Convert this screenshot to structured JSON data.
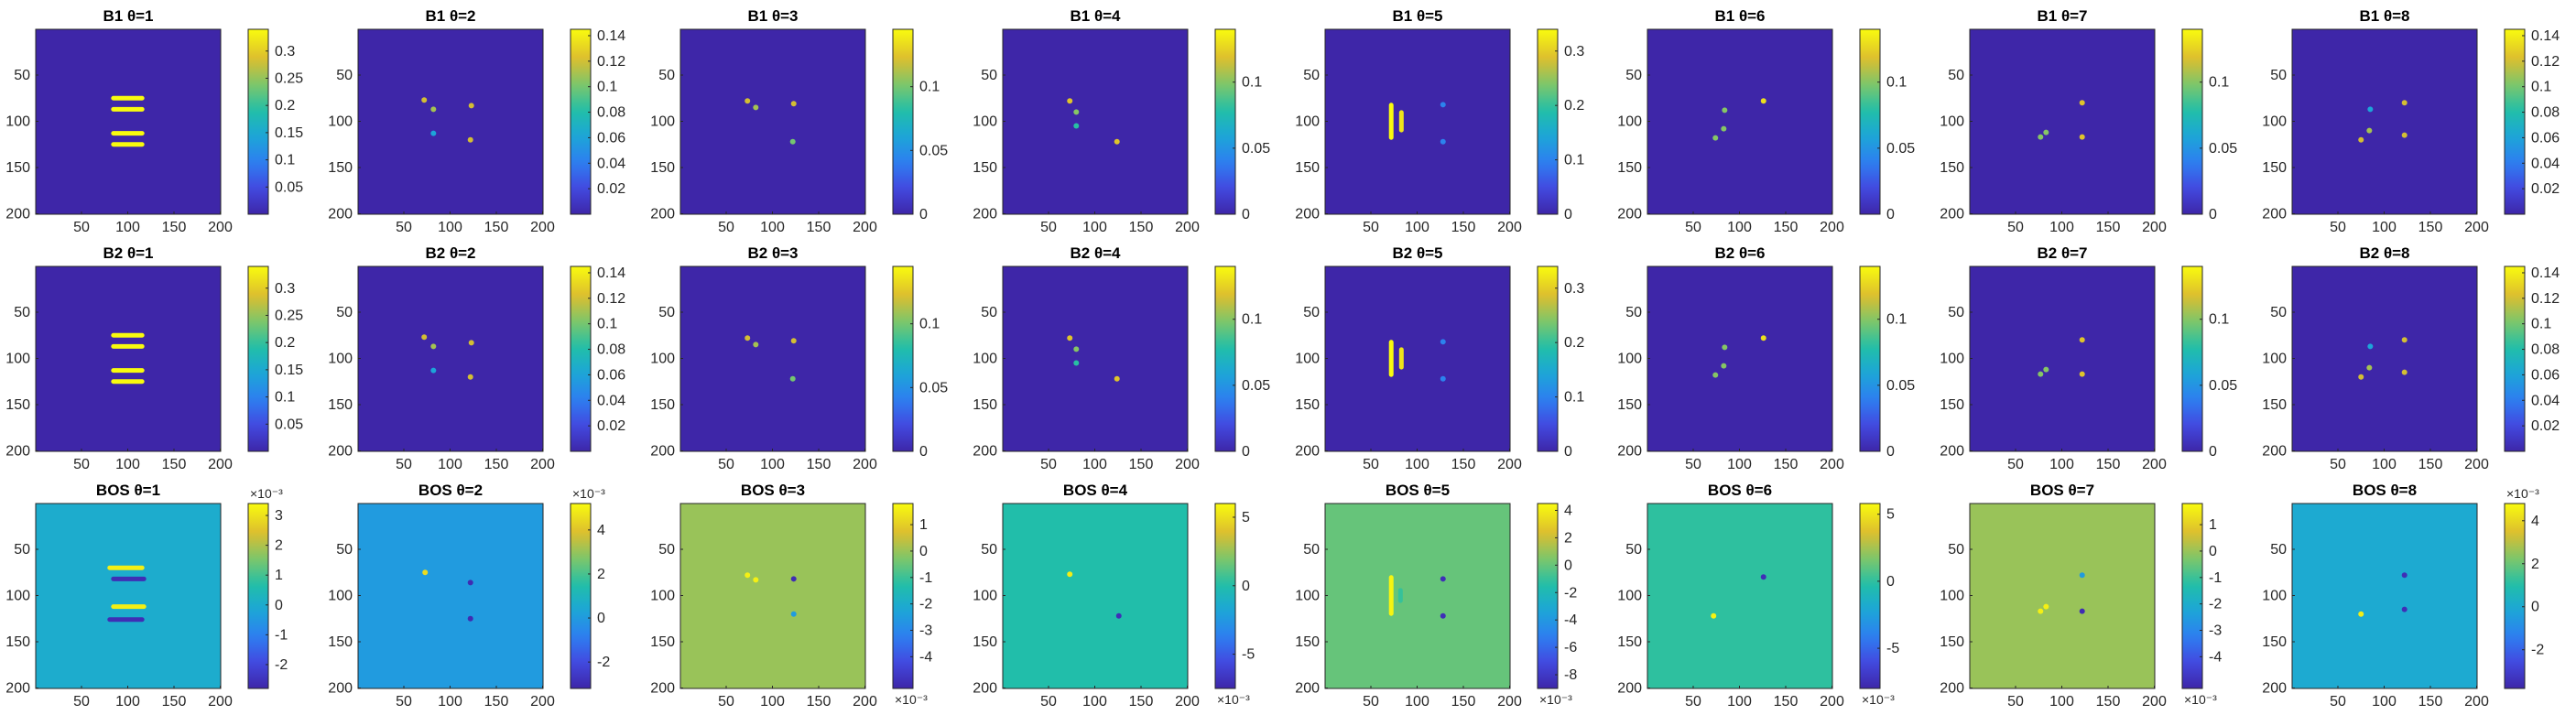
{
  "figure": {
    "xticks": [
      50,
      100,
      150,
      200
    ],
    "yticks": [
      50,
      100,
      150,
      200
    ],
    "xlim": [
      0.5,
      200.5
    ],
    "ylim": [
      0.5,
      200.5
    ],
    "y_axis_reversed": true,
    "colormap": "parula",
    "colors": {
      "background": "#3e26a8",
      "bos_label_fill": "#000000"
    }
  },
  "chart_data": [
    {
      "type": "heatmap",
      "title": "B1 θ=1",
      "clim": [
        0,
        0.34
      ],
      "cticks": [
        0.05,
        0.1,
        0.15,
        0.2,
        0.25,
        0.3
      ],
      "clabels": [
        "0.05",
        "0.1",
        "0.15",
        "0.2",
        "0.25",
        "0.3"
      ],
      "cexp": "",
      "bg": 0.0,
      "features": [
        {
          "k": "hbar",
          "x": [
            82,
            118
          ],
          "y": 75,
          "v": 0.34
        },
        {
          "k": "hbar",
          "x": [
            82,
            118
          ],
          "y": 87,
          "v": 0.34
        },
        {
          "k": "hbar",
          "x": [
            82,
            118
          ],
          "y": 113,
          "v": 0.34
        },
        {
          "k": "hbar",
          "x": [
            82,
            118
          ],
          "y": 125,
          "v": 0.34
        }
      ]
    },
    {
      "type": "heatmap",
      "title": "B1 θ=2",
      "clim": [
        0,
        0.145
      ],
      "cticks": [
        0.02,
        0.04,
        0.06,
        0.08,
        0.1,
        0.12,
        0.14
      ],
      "clabels": [
        "0.02",
        "0.04",
        "0.06",
        "0.08",
        "0.1",
        "0.12",
        "0.14"
      ],
      "cexp": "",
      "bg": 0.0,
      "features": [
        {
          "k": "dot",
          "x": 72,
          "y": 77,
          "v": 0.12
        },
        {
          "k": "dot",
          "x": 82,
          "y": 87,
          "v": 0.11
        },
        {
          "k": "dot",
          "x": 123,
          "y": 83,
          "v": 0.12
        },
        {
          "k": "dot",
          "x": 82,
          "y": 113,
          "v": 0.06
        },
        {
          "k": "dot",
          "x": 122,
          "y": 120,
          "v": 0.12
        }
      ]
    },
    {
      "type": "heatmap",
      "title": "B1 θ=3",
      "clim": [
        0,
        0.145
      ],
      "cticks": [
        0,
        0.05,
        0.1
      ],
      "clabels": [
        "0",
        "0.05",
        "0.1"
      ],
      "cexp": "",
      "bg": 0.0,
      "features": [
        {
          "k": "dot",
          "x": 73,
          "y": 78,
          "v": 0.12
        },
        {
          "k": "dot",
          "x": 82,
          "y": 85,
          "v": 0.11
        },
        {
          "k": "dot",
          "x": 123,
          "y": 81,
          "v": 0.12
        },
        {
          "k": "dot",
          "x": 122,
          "y": 122,
          "v": 0.1
        }
      ]
    },
    {
      "type": "heatmap",
      "title": "B1 θ=4",
      "clim": [
        0,
        0.14
      ],
      "cticks": [
        0,
        0.05,
        0.1
      ],
      "clabels": [
        "0",
        "0.05",
        "0.1"
      ],
      "cexp": "",
      "bg": 0.0,
      "features": [
        {
          "k": "dot",
          "x": 73,
          "y": 78,
          "v": 0.12
        },
        {
          "k": "dot",
          "x": 80,
          "y": 90,
          "v": 0.1
        },
        {
          "k": "dot",
          "x": 80,
          "y": 105,
          "v": 0.08
        },
        {
          "k": "dot",
          "x": 124,
          "y": 122,
          "v": 0.12
        }
      ]
    },
    {
      "type": "heatmap",
      "title": "B1 θ=5",
      "clim": [
        0,
        0.34
      ],
      "cticks": [
        0,
        0.1,
        0.2,
        0.3
      ],
      "clabels": [
        "0",
        "0.1",
        "0.2",
        "0.3"
      ],
      "cexp": "",
      "bg": 0.0,
      "features": [
        {
          "k": "vbar",
          "x": 72,
          "y": [
            80,
            120
          ],
          "v": 0.34
        },
        {
          "k": "vbar",
          "x": 83,
          "y": [
            88,
            112
          ],
          "v": 0.32
        },
        {
          "k": "dot",
          "x": 128,
          "y": 82,
          "v": 0.1
        },
        {
          "k": "dot",
          "x": 128,
          "y": 122,
          "v": 0.1
        }
      ]
    },
    {
      "type": "heatmap",
      "title": "B1 θ=6",
      "clim": [
        0,
        0.14
      ],
      "cticks": [
        0,
        0.05,
        0.1
      ],
      "clabels": [
        "0",
        "0.05",
        "0.1"
      ],
      "cexp": "",
      "bg": 0.0,
      "features": [
        {
          "k": "dot",
          "x": 84,
          "y": 88,
          "v": 0.1
        },
        {
          "k": "dot",
          "x": 83,
          "y": 108,
          "v": 0.1
        },
        {
          "k": "dot",
          "x": 74,
          "y": 118,
          "v": 0.1
        },
        {
          "k": "dot",
          "x": 126,
          "y": 78,
          "v": 0.13
        }
      ]
    },
    {
      "type": "heatmap",
      "title": "B1 θ=7",
      "clim": [
        0,
        0.14
      ],
      "cticks": [
        0,
        0.05,
        0.1
      ],
      "clabels": [
        "0",
        "0.05",
        "0.1"
      ],
      "cexp": "",
      "bg": 0.0,
      "features": [
        {
          "k": "dot",
          "x": 122,
          "y": 80,
          "v": 0.12
        },
        {
          "k": "dot",
          "x": 83,
          "y": 112,
          "v": 0.1
        },
        {
          "k": "dot",
          "x": 77,
          "y": 117,
          "v": 0.1
        },
        {
          "k": "dot",
          "x": 122,
          "y": 117,
          "v": 0.12
        }
      ]
    },
    {
      "type": "heatmap",
      "title": "B1 θ=8",
      "clim": [
        0,
        0.145
      ],
      "cticks": [
        0.02,
        0.04,
        0.06,
        0.08,
        0.1,
        0.12,
        0.14
      ],
      "clabels": [
        "0.02",
        "0.04",
        "0.06",
        "0.08",
        "0.1",
        "0.12",
        "0.14"
      ],
      "cexp": "",
      "bg": 0.0,
      "features": [
        {
          "k": "dot",
          "x": 122,
          "y": 80,
          "v": 0.12
        },
        {
          "k": "dot",
          "x": 85,
          "y": 87,
          "v": 0.06
        },
        {
          "k": "dot",
          "x": 84,
          "y": 110,
          "v": 0.11
        },
        {
          "k": "dot",
          "x": 122,
          "y": 115,
          "v": 0.12
        },
        {
          "k": "dot",
          "x": 75,
          "y": 120,
          "v": 0.12
        }
      ]
    },
    {
      "type": "heatmap",
      "title": "B2 θ=1",
      "clim": [
        0,
        0.34
      ],
      "cticks": [
        0.05,
        0.1,
        0.15,
        0.2,
        0.25,
        0.3
      ],
      "clabels": [
        "0.05",
        "0.1",
        "0.15",
        "0.2",
        "0.25",
        "0.3"
      ],
      "cexp": "",
      "bg": 0.0,
      "features": [
        {
          "k": "hbar",
          "x": [
            82,
            118
          ],
          "y": 75,
          "v": 0.34
        },
        {
          "k": "hbar",
          "x": [
            82,
            118
          ],
          "y": 87,
          "v": 0.34
        },
        {
          "k": "hbar",
          "x": [
            82,
            118
          ],
          "y": 113,
          "v": 0.34
        },
        {
          "k": "hbar",
          "x": [
            82,
            118
          ],
          "y": 125,
          "v": 0.34
        }
      ]
    },
    {
      "type": "heatmap",
      "title": "B2 θ=2",
      "clim": [
        0,
        0.145
      ],
      "cticks": [
        0.02,
        0.04,
        0.06,
        0.08,
        0.1,
        0.12,
        0.14
      ],
      "clabels": [
        "0.02",
        "0.04",
        "0.06",
        "0.08",
        "0.1",
        "0.12",
        "0.14"
      ],
      "cexp": "",
      "bg": 0.0,
      "features": [
        {
          "k": "dot",
          "x": 72,
          "y": 77,
          "v": 0.12
        },
        {
          "k": "dot",
          "x": 82,
          "y": 87,
          "v": 0.11
        },
        {
          "k": "dot",
          "x": 123,
          "y": 83,
          "v": 0.12
        },
        {
          "k": "dot",
          "x": 82,
          "y": 113,
          "v": 0.06
        },
        {
          "k": "dot",
          "x": 122,
          "y": 120,
          "v": 0.12
        }
      ]
    },
    {
      "type": "heatmap",
      "title": "B2 θ=3",
      "clim": [
        0,
        0.145
      ],
      "cticks": [
        0,
        0.05,
        0.1
      ],
      "clabels": [
        "0",
        "0.05",
        "0.1"
      ],
      "cexp": "",
      "bg": 0.0,
      "features": [
        {
          "k": "dot",
          "x": 73,
          "y": 78,
          "v": 0.12
        },
        {
          "k": "dot",
          "x": 82,
          "y": 85,
          "v": 0.11
        },
        {
          "k": "dot",
          "x": 123,
          "y": 81,
          "v": 0.12
        },
        {
          "k": "dot",
          "x": 122,
          "y": 122,
          "v": 0.1
        }
      ]
    },
    {
      "type": "heatmap",
      "title": "B2 θ=4",
      "clim": [
        0,
        0.14
      ],
      "cticks": [
        0,
        0.05,
        0.1
      ],
      "clabels": [
        "0",
        "0.05",
        "0.1"
      ],
      "cexp": "",
      "bg": 0.0,
      "features": [
        {
          "k": "dot",
          "x": 73,
          "y": 78,
          "v": 0.12
        },
        {
          "k": "dot",
          "x": 80,
          "y": 90,
          "v": 0.1
        },
        {
          "k": "dot",
          "x": 80,
          "y": 105,
          "v": 0.08
        },
        {
          "k": "dot",
          "x": 124,
          "y": 122,
          "v": 0.12
        }
      ]
    },
    {
      "type": "heatmap",
      "title": "B2 θ=5",
      "clim": [
        0,
        0.34
      ],
      "cticks": [
        0,
        0.1,
        0.2,
        0.3
      ],
      "clabels": [
        "0",
        "0.1",
        "0.2",
        "0.3"
      ],
      "cexp": "",
      "bg": 0.0,
      "features": [
        {
          "k": "vbar",
          "x": 72,
          "y": [
            80,
            120
          ],
          "v": 0.34
        },
        {
          "k": "vbar",
          "x": 83,
          "y": [
            88,
            112
          ],
          "v": 0.32
        },
        {
          "k": "dot",
          "x": 128,
          "y": 82,
          "v": 0.1
        },
        {
          "k": "dot",
          "x": 128,
          "y": 122,
          "v": 0.1
        }
      ]
    },
    {
      "type": "heatmap",
      "title": "B2 θ=6",
      "clim": [
        0,
        0.14
      ],
      "cticks": [
        0,
        0.05,
        0.1
      ],
      "clabels": [
        "0",
        "0.05",
        "0.1"
      ],
      "cexp": "",
      "bg": 0.0,
      "features": [
        {
          "k": "dot",
          "x": 84,
          "y": 88,
          "v": 0.1
        },
        {
          "k": "dot",
          "x": 83,
          "y": 108,
          "v": 0.1
        },
        {
          "k": "dot",
          "x": 74,
          "y": 118,
          "v": 0.1
        },
        {
          "k": "dot",
          "x": 126,
          "y": 78,
          "v": 0.13
        }
      ]
    },
    {
      "type": "heatmap",
      "title": "B2 θ=7",
      "clim": [
        0,
        0.14
      ],
      "cticks": [
        0,
        0.05,
        0.1
      ],
      "clabels": [
        "0",
        "0.05",
        "0.1"
      ],
      "cexp": "",
      "bg": 0.0,
      "features": [
        {
          "k": "dot",
          "x": 122,
          "y": 80,
          "v": 0.12
        },
        {
          "k": "dot",
          "x": 83,
          "y": 112,
          "v": 0.1
        },
        {
          "k": "dot",
          "x": 77,
          "y": 117,
          "v": 0.1
        },
        {
          "k": "dot",
          "x": 122,
          "y": 117,
          "v": 0.12
        }
      ]
    },
    {
      "type": "heatmap",
      "title": "B2 θ=8",
      "clim": [
        0,
        0.145
      ],
      "cticks": [
        0.02,
        0.04,
        0.06,
        0.08,
        0.1,
        0.12,
        0.14
      ],
      "clabels": [
        "0.02",
        "0.04",
        "0.06",
        "0.08",
        "0.1",
        "0.12",
        "0.14"
      ],
      "cexp": "",
      "bg": 0.0,
      "features": [
        {
          "k": "dot",
          "x": 122,
          "y": 80,
          "v": 0.12
        },
        {
          "k": "dot",
          "x": 85,
          "y": 87,
          "v": 0.06
        },
        {
          "k": "dot",
          "x": 84,
          "y": 110,
          "v": 0.11
        },
        {
          "k": "dot",
          "x": 122,
          "y": 115,
          "v": 0.12
        },
        {
          "k": "dot",
          "x": 75,
          "y": 120,
          "v": 0.12
        }
      ]
    },
    {
      "type": "heatmap",
      "title": "BOS θ=1",
      "clim": [
        -2.8,
        3.4
      ],
      "cticks": [
        -2,
        -1,
        0,
        1,
        2,
        3
      ],
      "clabels": [
        "-2",
        "-1",
        "0",
        "1",
        "2",
        "3"
      ],
      "cexp": "×10⁻³",
      "cexp_pos": "top",
      "bg": 0.0,
      "features": [
        {
          "k": "hbar",
          "x": [
            78,
            118
          ],
          "y": 70,
          "v": 3.2
        },
        {
          "k": "hbar",
          "x": [
            82,
            120
          ],
          "y": 82,
          "v": -2.6
        },
        {
          "k": "hbar",
          "x": [
            82,
            120
          ],
          "y": 112,
          "v": 3.2
        },
        {
          "k": "hbar",
          "x": [
            78,
            118
          ],
          "y": 126,
          "v": -2.6
        }
      ]
    },
    {
      "type": "heatmap",
      "title": "BOS θ=2",
      "clim": [
        -3.2,
        5.2
      ],
      "cticks": [
        -2,
        0,
        2,
        4
      ],
      "clabels": [
        "-2",
        "0",
        "2",
        "4"
      ],
      "cexp": "×10⁻³",
      "cexp_pos": "top",
      "bg": 0.0,
      "features": [
        {
          "k": "dot",
          "x": 73,
          "y": 75,
          "v": 4.5
        },
        {
          "k": "dot",
          "x": 122,
          "y": 86,
          "v": -3.0
        },
        {
          "k": "dot",
          "x": 122,
          "y": 125,
          "v": -3.0
        }
      ]
    },
    {
      "type": "heatmap",
      "title": "BOS θ=3",
      "clim": [
        -5.2,
        1.8
      ],
      "cticks": [
        -4,
        -3,
        -2,
        -1,
        0,
        1
      ],
      "clabels": [
        "-4",
        "-3",
        "-2",
        "-1",
        "0",
        "1"
      ],
      "cexp": "×10⁻³",
      "cexp_pos": "bottom",
      "bg": 0.0,
      "features": [
        {
          "k": "dot",
          "x": 73,
          "y": 78,
          "v": 1.6
        },
        {
          "k": "dot",
          "x": 82,
          "y": 83,
          "v": 1.6
        },
        {
          "k": "dot",
          "x": 123,
          "y": 82,
          "v": -5.0
        },
        {
          "k": "dot",
          "x": 123,
          "y": 120,
          "v": -2.5
        }
      ]
    },
    {
      "type": "heatmap",
      "title": "BOS θ=4",
      "clim": [
        -7.5,
        6.0
      ],
      "cticks": [
        -5,
        0,
        5
      ],
      "clabels": [
        "-5",
        "0",
        "5"
      ],
      "cexp": "×10⁻³",
      "cexp_pos": "bottom",
      "bg": 0.0,
      "features": [
        {
          "k": "dot",
          "x": 73,
          "y": 77,
          "v": 5.5
        },
        {
          "k": "dot",
          "x": 126,
          "y": 122,
          "v": -7.0
        }
      ]
    },
    {
      "type": "heatmap",
      "title": "BOS θ=5",
      "clim": [
        -9.0,
        4.5
      ],
      "cticks": [
        -8,
        -6,
        -4,
        -2,
        0,
        2,
        4
      ],
      "clabels": [
        "-8",
        "-6",
        "-4",
        "-2",
        "0",
        "2",
        "4"
      ],
      "cexp": "×10⁻³",
      "cexp_pos": "bottom",
      "bg": 0.0,
      "features": [
        {
          "k": "vbar",
          "x": 72,
          "y": [
            78,
            122
          ],
          "v": 4.3
        },
        {
          "k": "vbar",
          "x": 82,
          "y": [
            92,
            108
          ],
          "v": -1.0
        },
        {
          "k": "dot",
          "x": 128,
          "y": 82,
          "v": -8.5
        },
        {
          "k": "dot",
          "x": 128,
          "y": 122,
          "v": -8.5
        }
      ]
    },
    {
      "type": "heatmap",
      "title": "BOS θ=6",
      "clim": [
        -8.0,
        5.8
      ],
      "cticks": [
        -5,
        0,
        5
      ],
      "clabels": [
        "-5",
        "0",
        "5"
      ],
      "cexp": "×10⁻³",
      "cexp_pos": "bottom",
      "bg": 0.0,
      "features": [
        {
          "k": "dot",
          "x": 126,
          "y": 80,
          "v": -7.5
        },
        {
          "k": "dot",
          "x": 72,
          "y": 122,
          "v": 5.5
        }
      ]
    },
    {
      "type": "heatmap",
      "title": "BOS θ=7",
      "clim": [
        -5.2,
        1.8
      ],
      "cticks": [
        -4,
        -3,
        -2,
        -1,
        0,
        1
      ],
      "clabels": [
        "-4",
        "-3",
        "-2",
        "-1",
        "0",
        "1"
      ],
      "cexp": "×10⁻³",
      "cexp_pos": "bottom",
      "bg": 0.0,
      "features": [
        {
          "k": "dot",
          "x": 122,
          "y": 78,
          "v": -2.5
        },
        {
          "k": "dot",
          "x": 83,
          "y": 112,
          "v": 1.6
        },
        {
          "k": "dot",
          "x": 77,
          "y": 117,
          "v": 1.6
        },
        {
          "k": "dot",
          "x": 122,
          "y": 117,
          "v": -5.0
        }
      ]
    },
    {
      "type": "heatmap",
      "title": "BOS θ=8",
      "clim": [
        -3.8,
        4.8
      ],
      "cticks": [
        -2,
        0,
        2,
        4
      ],
      "clabels": [
        "-2",
        "0",
        "2",
        "4"
      ],
      "cexp": "×10⁻³",
      "cexp_pos": "top",
      "bg": 0.0,
      "features": [
        {
          "k": "dot",
          "x": 122,
          "y": 78,
          "v": -3.5
        },
        {
          "k": "dot",
          "x": 122,
          "y": 115,
          "v": -3.5
        },
        {
          "k": "dot",
          "x": 75,
          "y": 120,
          "v": 4.5
        }
      ]
    }
  ]
}
